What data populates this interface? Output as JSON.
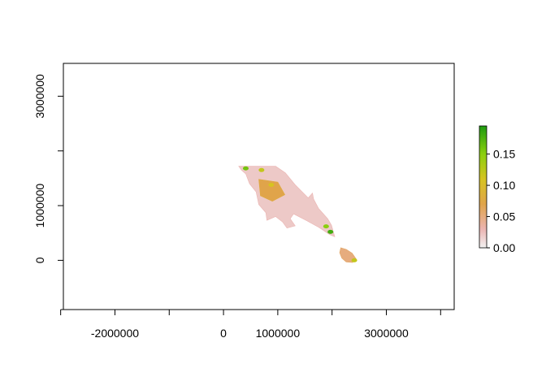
{
  "chart_data": {
    "type": "raster",
    "title": "",
    "xlabel": "",
    "ylabel": "",
    "xlim": [
      -2950000,
      4250000
    ],
    "ylim": [
      -900000,
      3600000
    ],
    "x_ticks": [
      {
        "value": -3000000,
        "label": ""
      },
      {
        "value": -2000000,
        "label": "-2000000"
      },
      {
        "value": -1000000,
        "label": ""
      },
      {
        "value": 0,
        "label": "0"
      },
      {
        "value": 1000000,
        "label": "1000000"
      },
      {
        "value": 2000000,
        "label": ""
      },
      {
        "value": 3000000,
        "label": "3000000"
      },
      {
        "value": 4000000,
        "label": ""
      }
    ],
    "y_ticks": [
      {
        "value": 0,
        "label": "0"
      },
      {
        "value": 1000000,
        "label": "1000000"
      },
      {
        "value": 2000000,
        "label": ""
      },
      {
        "value": 3000000,
        "label": "3000000"
      }
    ],
    "legend": {
      "position": "right",
      "min": 0.0,
      "max": 0.195,
      "ticks": [
        {
          "value": 0.0,
          "label": "0.00"
        },
        {
          "value": 0.05,
          "label": "0.05"
        },
        {
          "value": 0.1,
          "label": "0.10"
        },
        {
          "value": 0.15,
          "label": "0.15"
        }
      ],
      "color_stops": [
        {
          "value": 0.0,
          "color": "#f2f2f2"
        },
        {
          "value": 0.03,
          "color": "#ebb4b1"
        },
        {
          "value": 0.07,
          "color": "#e0a44a"
        },
        {
          "value": 0.11,
          "color": "#d6c321"
        },
        {
          "value": 0.15,
          "color": "#8bcf0e"
        },
        {
          "value": 0.195,
          "color": "#1e9a10"
        }
      ]
    },
    "raster": {
      "base_color": "#ecc3bf",
      "regions": [
        {
          "name": "main-landmass",
          "value": 0.02,
          "outline": [
            [
              280000,
              1720000
            ],
            [
              560000,
              1720000
            ],
            [
              960000,
              1720000
            ],
            [
              1140000,
              1600000
            ],
            [
              1320000,
              1380000
            ],
            [
              1560000,
              1140000
            ],
            [
              1640000,
              1230000
            ],
            [
              1660000,
              1120000
            ],
            [
              1750000,
              950000
            ],
            [
              1920000,
              760000
            ],
            [
              1990000,
              640000
            ],
            [
              2050000,
              430000
            ],
            [
              1960000,
              470000
            ],
            [
              1760000,
              600000
            ],
            [
              1540000,
              720000
            ],
            [
              1290000,
              850000
            ],
            [
              1230000,
              760000
            ],
            [
              1320000,
              630000
            ],
            [
              1170000,
              590000
            ],
            [
              1090000,
              700000
            ],
            [
              960000,
              800000
            ],
            [
              800000,
              730000
            ],
            [
              780000,
              870000
            ],
            [
              650000,
              1020000
            ],
            [
              600000,
              1250000
            ],
            [
              480000,
              1400000
            ],
            [
              410000,
              1580000
            ],
            [
              330000,
              1650000
            ]
          ]
        },
        {
          "name": "lower-tip",
          "value": 0.05,
          "outline": [
            [
              2160000,
              230000
            ],
            [
              2260000,
              200000
            ],
            [
              2370000,
              130000
            ],
            [
              2440000,
              30000
            ],
            [
              2380000,
              -40000
            ],
            [
              2260000,
              -30000
            ],
            [
              2180000,
              40000
            ],
            [
              2140000,
              140000
            ]
          ]
        },
        {
          "name": "central-patch",
          "value": 0.07,
          "outline": [
            [
              650000,
              1480000
            ],
            [
              1000000,
              1430000
            ],
            [
              1130000,
              1200000
            ],
            [
              900000,
              1080000
            ],
            [
              680000,
              1180000
            ]
          ]
        }
      ],
      "highlights": [
        {
          "x": 410000,
          "y": 1680000,
          "value": 0.16
        },
        {
          "x": 700000,
          "y": 1650000,
          "value": 0.12
        },
        {
          "x": 880000,
          "y": 1380000,
          "value": 0.11
        },
        {
          "x": 1890000,
          "y": 620000,
          "value": 0.15
        },
        {
          "x": 1970000,
          "y": 520000,
          "value": 0.18
        },
        {
          "x": 2410000,
          "y": 0,
          "value": 0.12
        }
      ]
    }
  }
}
